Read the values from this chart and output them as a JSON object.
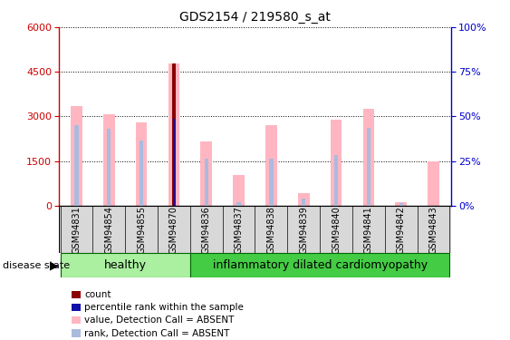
{
  "title": "GDS2154 / 219580_s_at",
  "samples": [
    "GSM94831",
    "GSM94854",
    "GSM94855",
    "GSM94870",
    "GSM94836",
    "GSM94837",
    "GSM94838",
    "GSM94839",
    "GSM94840",
    "GSM94841",
    "GSM94842",
    "GSM94843"
  ],
  "value_absent": [
    3350,
    3080,
    2800,
    4780,
    2150,
    1020,
    2720,
    430,
    2900,
    3250,
    120,
    1480
  ],
  "rank_absent_left": [
    2720,
    2600,
    2200,
    0,
    1580,
    120,
    1580,
    230,
    1700,
    2620,
    100,
    0
  ],
  "count_value": 4780,
  "count_index": 3,
  "percentile_value": 2920,
  "percentile_index": 3,
  "ylim_left": [
    0,
    6000
  ],
  "ylim_right": [
    0,
    100
  ],
  "yticks_left": [
    0,
    1500,
    3000,
    4500,
    6000
  ],
  "yticks_right": [
    0,
    25,
    50,
    75,
    100
  ],
  "healthy_count": 4,
  "disease_count": 8,
  "healthy_label": "healthy",
  "disease_label": "inflammatory dilated cardiomyopathy",
  "disease_state_label": "disease state",
  "color_count": "#8B0000",
  "color_percentile": "#1010AA",
  "color_value_absent": "#FFB6C1",
  "color_rank_absent": "#AABBDD",
  "legend_items": [
    "count",
    "percentile rank within the sample",
    "value, Detection Call = ABSENT",
    "rank, Detection Call = ABSENT"
  ],
  "background_color": "#ffffff",
  "left_axis_color": "#CC0000",
  "right_axis_color": "#0000CC",
  "plot_bg": "#ffffff",
  "label_bg": "#d8d8d8",
  "healthy_color": "#aaf0a0",
  "disease_color": "#44cc44",
  "healthy_border": "#00aa00",
  "disease_border": "#00aa00"
}
